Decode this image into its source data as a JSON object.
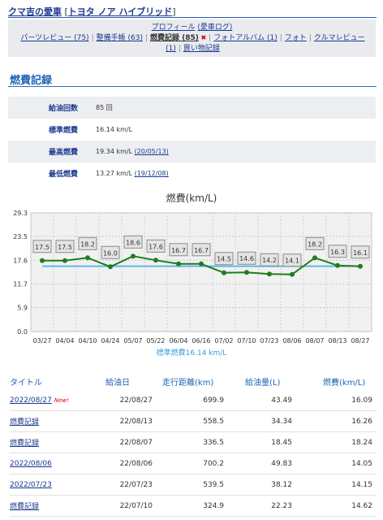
{
  "header": {
    "owner_title": "クマ吉の愛車",
    "bracket_open": "[",
    "model_name": "トヨタ ノア ハイブリッド",
    "bracket_close": "]"
  },
  "nav": {
    "profile": "プロフィール",
    "blog": "(愛車ログ)",
    "items": [
      {
        "label": "パーツレビュー (75)",
        "current": false
      },
      {
        "label": "整備手帳 (63)",
        "current": false
      },
      {
        "label": "燃費記録 (85)",
        "current": true
      },
      {
        "label": "フォトアルバム (1)",
        "current": false
      },
      {
        "label": "フォト",
        "current": false
      },
      {
        "label": "クルマレビュー (1)",
        "current": false
      },
      {
        "label": "買い物記録",
        "current": false
      }
    ],
    "current_marker": "✖"
  },
  "section": {
    "title": "燃費記録"
  },
  "stats": [
    {
      "label": "給油回数",
      "value": "85 回",
      "link": ""
    },
    {
      "label": "標準燃費",
      "value": "16.14 km/L",
      "link": ""
    },
    {
      "label": "最高燃費",
      "value": "19.34 km/L",
      "link": "(20/05/13)"
    },
    {
      "label": "最低燃費",
      "value": "13.27 km/L",
      "link": "(19/12/08)"
    }
  ],
  "chart_data": {
    "type": "line",
    "title": "燃費(km/L)",
    "categories": [
      "03/27",
      "04/04",
      "04/10",
      "04/24",
      "05/07",
      "05/22",
      "06/04",
      "06/16",
      "07/02",
      "07/10",
      "07/23",
      "08/06",
      "08/07",
      "08/13",
      "08/27"
    ],
    "series": [
      {
        "values": [
          17.5,
          17.5,
          18.2,
          16.0,
          18.6,
          17.6,
          16.7,
          16.7,
          14.5,
          14.6,
          14.2,
          14.1,
          18.2,
          16.3,
          16.1
        ],
        "color": "#1e7d1e"
      }
    ],
    "data_labels": [
      "17.5",
      "17.5",
      "18.2",
      "16.0",
      "18.6",
      "17.6",
      "16.7",
      "16.7",
      "14.5",
      "14.6",
      "14.2",
      "14.1",
      "18.2",
      "16.3",
      "16.1"
    ],
    "reference_line": {
      "value": 16.14,
      "label": "標準燃費16.14 km/L",
      "color": "#5bb8e8"
    },
    "yticks": [
      "29.3",
      "23.5",
      "17.6",
      "11.7",
      "5.9",
      "0.0"
    ],
    "ylim": [
      0,
      29.3
    ],
    "grid": true,
    "plot_bg": "#f1f1f1"
  },
  "table": {
    "headers": [
      "タイトル",
      "給油日",
      "走行距離(km)",
      "給油量(L)",
      "燃費(km/L)"
    ],
    "new_label": "New!",
    "rows": [
      {
        "title": "2022/08/27",
        "is_new": true,
        "date": "22/08/27",
        "distance": "699.9",
        "fuel": "43.49",
        "economy": "16.09"
      },
      {
        "title": "燃費記録",
        "is_new": false,
        "date": "22/08/13",
        "distance": "558.5",
        "fuel": "34.34",
        "economy": "16.26"
      },
      {
        "title": "燃費記録",
        "is_new": false,
        "date": "22/08/07",
        "distance": "336.5",
        "fuel": "18.45",
        "economy": "18.24"
      },
      {
        "title": "2022/08/06",
        "is_new": false,
        "date": "22/08/06",
        "distance": "700.2",
        "fuel": "49.83",
        "economy": "14.05"
      },
      {
        "title": "2022/07/23",
        "is_new": false,
        "date": "22/07/23",
        "distance": "539.5",
        "fuel": "38.12",
        "economy": "14.15"
      },
      {
        "title": "燃費記録",
        "is_new": false,
        "date": "22/07/10",
        "distance": "324.9",
        "fuel": "22.23",
        "economy": "14.62"
      }
    ]
  }
}
